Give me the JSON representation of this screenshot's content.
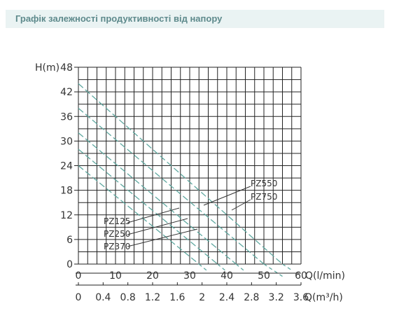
{
  "header": {
    "title": "Графік залежності продуктивності від напору"
  },
  "chart_data": {
    "type": "line",
    "title": "",
    "ylabel": "H(m)",
    "xlabel": "Q(l/min)",
    "x2label": "Q(m³/h)",
    "xlim": [
      0,
      60
    ],
    "ylim": [
      0,
      48
    ],
    "y_ticks": [
      "0",
      "6",
      "12",
      "18",
      "24",
      "30",
      "36",
      "42",
      "48"
    ],
    "x_ticks": [
      "0",
      "10",
      "20",
      "30",
      "40",
      "50",
      "60"
    ],
    "x2_ticks": [
      "0",
      "0.4",
      "0.8",
      "1.2",
      "1.6",
      "2",
      "2.4",
      "2.8",
      "3.2",
      "3.6"
    ],
    "grid": true,
    "line_color": "#5fa8a0",
    "series": [
      {
        "name": "PZ125",
        "x": [
          0,
          32.5,
          34.5
        ],
        "y": [
          24,
          0,
          -1.5
        ]
      },
      {
        "name": "PZ250",
        "x": [
          0,
          37.5,
          39.5
        ],
        "y": [
          28,
          0,
          -1.5
        ]
      },
      {
        "name": "PZ370",
        "x": [
          0,
          42.5,
          44.5
        ],
        "y": [
          32,
          0,
          -1.5
        ]
      },
      {
        "name": "PZ550",
        "x": [
          0,
          50,
          55
        ],
        "y": [
          38,
          0,
          -3
        ]
      },
      {
        "name": "PZ750",
        "x": [
          0,
          55,
          57.5
        ],
        "y": [
          44,
          0,
          -1.5
        ]
      }
    ],
    "labels": [
      {
        "text": "PZ125",
        "leader_to": [
          0,
          0
        ]
      },
      {
        "text": "PZ250",
        "leader_to": [
          0,
          0
        ]
      },
      {
        "text": "PZ370",
        "leader_to": [
          0,
          0
        ]
      },
      {
        "text": "PZ550",
        "leader_to": [
          0,
          0
        ]
      },
      {
        "text": "PZ750",
        "leader_to": [
          0,
          0
        ]
      }
    ]
  }
}
